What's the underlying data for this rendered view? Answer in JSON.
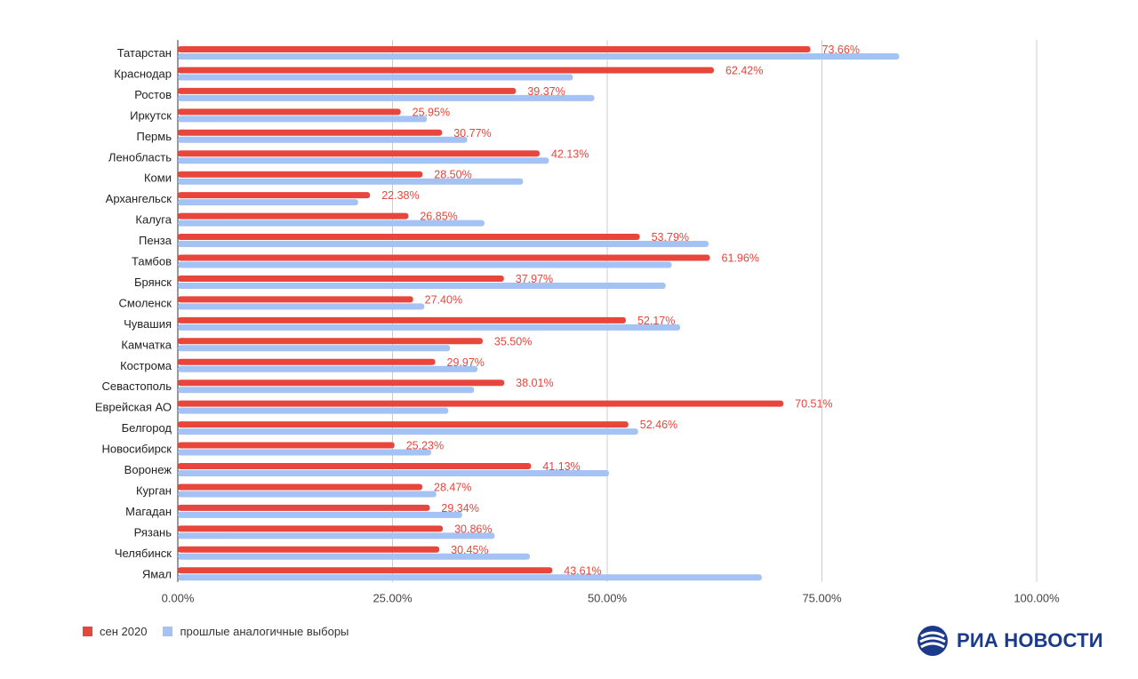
{
  "chart_data": {
    "type": "bar",
    "orientation": "horizontal",
    "categories": [
      "Татарстан",
      "Краснодар",
      "Ростов",
      "Иркутск",
      "Пермь",
      "Ленобласть",
      "Коми",
      "Архангельск",
      "Калуга",
      "Пенза",
      "Тамбов",
      "Брянск",
      "Смоленск",
      "Чувашия",
      "Камчатка",
      "Кострома",
      "Севастополь",
      "Еврейская АО",
      "Белгород",
      "Новосибирск",
      "Воронеж",
      "Курган",
      "Магадан",
      "Рязань",
      "Челябинск",
      "Ямал"
    ],
    "series": [
      {
        "name": "сен 2020",
        "color": "#e8453c",
        "values": [
          73.66,
          62.42,
          39.37,
          25.95,
          30.77,
          42.13,
          28.5,
          22.38,
          26.85,
          53.79,
          61.96,
          37.97,
          27.4,
          52.17,
          35.5,
          29.97,
          38.01,
          70.51,
          52.46,
          25.23,
          41.13,
          28.47,
          29.34,
          30.86,
          30.45,
          43.61
        ],
        "labels": [
          "73.66%",
          "62.42%",
          "39.37%",
          "25.95%",
          "30.77%",
          "42.13%",
          "28.50%",
          "22.38%",
          "26.85%",
          "53.79%",
          "61.96%",
          "37.97%",
          "27.40%",
          "52.17%",
          "35.50%",
          "29.97%",
          "38.01%",
          "70.51%",
          "52.46%",
          "25.23%",
          "41.13%",
          "28.47%",
          "29.34%",
          "30.86%",
          "30.45%",
          "43.61%"
        ]
      },
      {
        "name": "прошлые аналогичные выборы",
        "color": "#a4c2f4",
        "values": [
          84.0,
          46.0,
          48.5,
          29.0,
          33.7,
          43.2,
          40.2,
          21.0,
          35.7,
          61.8,
          57.5,
          56.8,
          28.7,
          58.5,
          31.7,
          34.9,
          34.5,
          31.5,
          53.6,
          29.5,
          50.2,
          30.1,
          33.1,
          36.9,
          41.0,
          68.0
        ]
      }
    ],
    "xlim": [
      0,
      100
    ],
    "ticks": [
      "0.00%",
      "25.00%",
      "50.00%",
      "75.00%",
      "100.00%"
    ],
    "grid": true,
    "legend_position": "bottom-left"
  },
  "brand": {
    "name": "РИА НОВОСТИ",
    "color": "#1b3a8a",
    "icon": "ria-logo-icon"
  }
}
